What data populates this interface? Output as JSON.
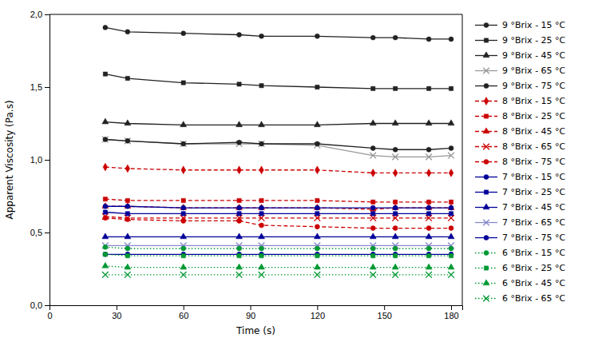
{
  "chart_data": {
    "type": "line",
    "xlabel": "Time (s)",
    "ylabel": "Apparent Viscosity  (Pa.s)",
    "xlim": [
      0,
      185
    ],
    "ylim": [
      0.0,
      2.0
    ],
    "xticks": [
      0,
      30,
      60,
      90,
      120,
      150,
      180
    ],
    "yticks": [
      {
        "value": 0.0,
        "label": "0,0"
      },
      {
        "value": 0.5,
        "label": "0,5"
      },
      {
        "value": 1.0,
        "label": "1,0"
      },
      {
        "value": 1.5,
        "label": "1,5"
      },
      {
        "value": 2.0,
        "label": "2,0"
      }
    ],
    "grid": false,
    "legend": "right",
    "x": [
      25,
      35,
      60,
      85,
      95,
      120,
      145,
      155,
      170,
      180
    ],
    "series": [
      {
        "name": "9 °Brix - 15 °C",
        "color": "#222222",
        "line_style": "solid",
        "marker": "circle",
        "values": [
          1.91,
          1.88,
          1.87,
          1.86,
          1.85,
          1.85,
          1.84,
          1.84,
          1.83,
          1.83
        ]
      },
      {
        "name": "9 °Brix - 25 °C",
        "color": "#222222",
        "line_style": "solid",
        "marker": "square",
        "values": [
          1.59,
          1.56,
          1.53,
          1.52,
          1.51,
          1.5,
          1.49,
          1.49,
          1.49,
          1.49
        ]
      },
      {
        "name": "9 °Brix - 45 °C",
        "color": "#222222",
        "line_style": "solid",
        "marker": "triangle",
        "values": [
          1.26,
          1.25,
          1.24,
          1.24,
          1.24,
          1.24,
          1.25,
          1.25,
          1.25,
          1.25
        ]
      },
      {
        "name": "9 °Brix - 65 °C",
        "color": "#999999",
        "line_style": "solid",
        "marker": "cross",
        "values": [
          1.14,
          1.13,
          1.11,
          1.11,
          1.11,
          1.1,
          1.03,
          1.02,
          1.02,
          1.03
        ]
      },
      {
        "name": "9 °Brix - 75 °C",
        "color": "#222222",
        "line_style": "solid",
        "marker": "circle",
        "values": [
          1.14,
          1.13,
          1.11,
          1.12,
          1.11,
          1.11,
          1.08,
          1.07,
          1.07,
          1.08
        ]
      },
      {
        "name": "8 °Brix - 15 °C",
        "color": "#cc0000",
        "line_style": "dashed",
        "marker": "diamond",
        "values": [
          0.95,
          0.94,
          0.93,
          0.93,
          0.93,
          0.93,
          0.91,
          0.91,
          0.91,
          0.91
        ]
      },
      {
        "name": "8 °Brix - 25 °C",
        "color": "#cc0000",
        "line_style": "dashed",
        "marker": "square",
        "values": [
          0.73,
          0.72,
          0.72,
          0.72,
          0.72,
          0.72,
          0.71,
          0.71,
          0.71,
          0.71
        ]
      },
      {
        "name": "8 °Brix - 45 °C",
        "color": "#cc0000",
        "line_style": "dashed",
        "marker": "triangle",
        "values": [
          0.68,
          0.68,
          0.67,
          0.67,
          0.67,
          0.67,
          0.66,
          0.67,
          0.67,
          0.67
        ]
      },
      {
        "name": "8 °Brix - 65 °C",
        "color": "#cc0000",
        "line_style": "dashed",
        "marker": "cross",
        "values": [
          0.61,
          0.6,
          0.6,
          0.6,
          0.6,
          0.6,
          0.6,
          0.6,
          0.6,
          0.6
        ]
      },
      {
        "name": "8 °Brix - 75 °C",
        "color": "#cc0000",
        "line_style": "dashed",
        "marker": "circle",
        "values": [
          0.6,
          0.59,
          0.58,
          0.58,
          0.55,
          0.54,
          0.53,
          0.53,
          0.53,
          0.53
        ]
      },
      {
        "name": "7 °Brix - 15 °C",
        "color": "#000099",
        "line_style": "solid",
        "marker": "circle",
        "values": [
          0.68,
          0.68,
          0.67,
          0.67,
          0.67,
          0.67,
          0.67,
          0.67,
          0.67,
          0.67
        ]
      },
      {
        "name": "7 °Brix - 25 °C",
        "color": "#000099",
        "line_style": "solid",
        "marker": "square",
        "values": [
          0.64,
          0.63,
          0.63,
          0.63,
          0.63,
          0.63,
          0.63,
          0.63,
          0.63,
          0.63
        ]
      },
      {
        "name": "7 °Brix - 45 °C",
        "color": "#000099",
        "line_style": "solid",
        "marker": "triangle",
        "values": [
          0.47,
          0.47,
          0.47,
          0.47,
          0.47,
          0.47,
          0.47,
          0.47,
          0.47,
          0.47
        ]
      },
      {
        "name": "7 °Brix - 65 °C",
        "color": "#8888cc",
        "line_style": "solid",
        "marker": "cross",
        "values": [
          0.41,
          0.41,
          0.41,
          0.41,
          0.41,
          0.41,
          0.41,
          0.41,
          0.41,
          0.41
        ]
      },
      {
        "name": "7 °Brix - 75 °C",
        "color": "#000099",
        "line_style": "solid",
        "marker": "circle",
        "values": [
          0.35,
          0.35,
          0.35,
          0.35,
          0.35,
          0.35,
          0.35,
          0.35,
          0.35,
          0.35
        ]
      },
      {
        "name": "6 °Brix - 15 °C",
        "color": "#009933",
        "line_style": "dotted",
        "marker": "circle",
        "values": [
          0.4,
          0.39,
          0.39,
          0.39,
          0.39,
          0.39,
          0.39,
          0.39,
          0.39,
          0.39
        ]
      },
      {
        "name": "6 °Brix - 25 °C",
        "color": "#009933",
        "line_style": "dotted",
        "marker": "square",
        "values": [
          0.35,
          0.34,
          0.34,
          0.34,
          0.34,
          0.34,
          0.34,
          0.34,
          0.34,
          0.34
        ]
      },
      {
        "name": "6 °Brix - 45 °C",
        "color": "#009933",
        "line_style": "dotted",
        "marker": "triangle",
        "values": [
          0.27,
          0.26,
          0.26,
          0.26,
          0.26,
          0.26,
          0.26,
          0.26,
          0.26,
          0.26
        ]
      },
      {
        "name": "6 °Brix - 65 °C",
        "color": "#009933",
        "line_style": "dotted",
        "marker": "cross",
        "values": [
          0.21,
          0.21,
          0.21,
          0.21,
          0.21,
          0.21,
          0.21,
          0.21,
          0.21,
          0.21
        ]
      }
    ]
  }
}
